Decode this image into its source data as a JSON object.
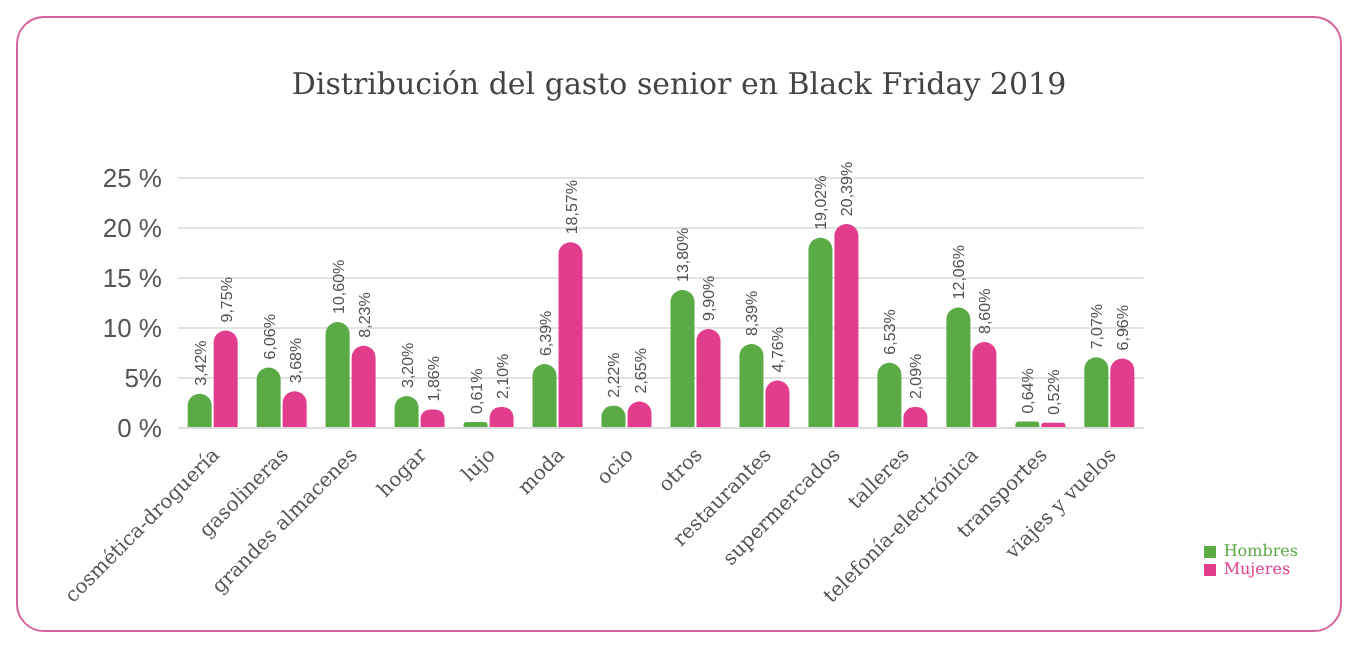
{
  "chart_data": {
    "type": "bar",
    "title": "Distribución del gasto senior en Black Friday 2019",
    "categories": [
      "cosmética-droguería",
      "gasolineras",
      "grandes almacenes",
      "hogar",
      "lujo",
      "moda",
      "ocio",
      "otros",
      "restaurantes",
      "supermercados",
      "talleres",
      "telefonía-electrónica",
      "transportes",
      "viajes y vuelos"
    ],
    "series": [
      {
        "name": "Hombres",
        "color": "#5aaa46",
        "values": [
          3.42,
          6.06,
          10.6,
          3.2,
          0.61,
          6.39,
          2.22,
          13.8,
          8.39,
          19.02,
          6.53,
          12.06,
          0.64,
          7.07
        ],
        "value_labels": [
          "3,42%",
          "6,06%",
          "10,60%",
          "3,20%",
          "0,61%",
          "6,39%",
          "2,22%",
          "13,80%",
          "8,39%",
          "19,02%",
          "6,53%",
          "12,06%",
          "0,64%",
          "7,07%"
        ]
      },
      {
        "name": "Mujeres",
        "color": "#e23d8d",
        "values": [
          9.75,
          3.68,
          8.23,
          1.86,
          2.1,
          18.57,
          2.65,
          9.9,
          4.76,
          20.39,
          2.09,
          8.6,
          0.52,
          6.96
        ],
        "value_labels": [
          "9,75%",
          "3,68%",
          "8,23%",
          "1,86%",
          "2,10%",
          "18,57%",
          "2,65%",
          "9,90%",
          "4,76%",
          "20,39%",
          "2,09%",
          "8,60%",
          "0,52%",
          "6,96%"
        ]
      }
    ],
    "ylim": [
      0,
      25
    ],
    "yticks": [
      {
        "value": 0,
        "label": "0 %"
      },
      {
        "value": 5,
        "label": "5%"
      },
      {
        "value": 10,
        "label": "10 %"
      },
      {
        "value": 15,
        "label": "15 %"
      },
      {
        "value": 20,
        "label": "20 %"
      },
      {
        "value": 25,
        "label": "25 %"
      }
    ],
    "grid": "y",
    "legend": "bottom right"
  }
}
